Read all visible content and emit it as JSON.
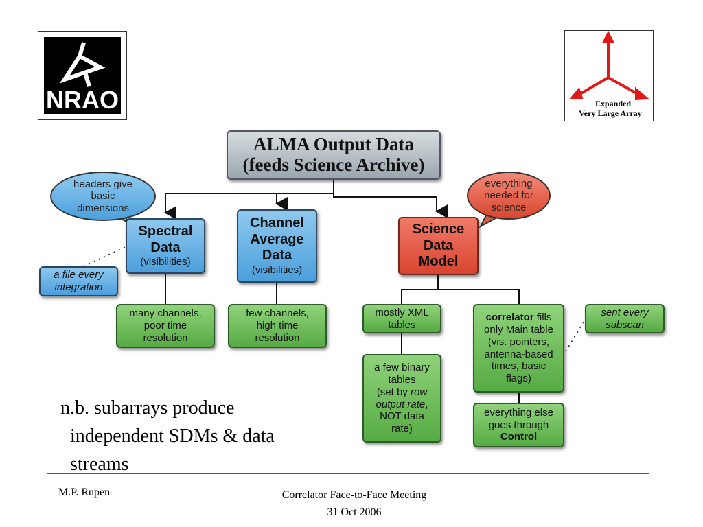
{
  "logos": {
    "left": "NRAO",
    "right": "Expanded Very Large Array"
  },
  "title": {
    "line1": "ALMA Output Data",
    "line2": "(feeds Science Archive)"
  },
  "bubbles": {
    "headers": [
      "headers give",
      "basic",
      "dimensions"
    ],
    "science": [
      "everything",
      "needed for",
      "science"
    ]
  },
  "nodes": {
    "spectral": {
      "title1": "Spectral",
      "title2": "Data",
      "sub": "(visibilities)"
    },
    "channel": {
      "title1": "Channel",
      "title2": "Average",
      "title3": "Data",
      "sub": "(visibilities)"
    },
    "sdm": {
      "title1": "Science",
      "title2": "Data",
      "title3": "Model"
    },
    "file_every": [
      "a file every",
      "integration"
    ],
    "many_channels": [
      "many channels,",
      "poor time",
      "resolution"
    ],
    "few_channels": [
      "few channels,",
      "high time",
      "resolution"
    ],
    "xml": [
      "mostly XML",
      "tables"
    ],
    "binary": {
      "l1": "a few binary",
      "l2": "tables",
      "l3a": "(set by ",
      "l3b": "row",
      "l4a": "output rate",
      "l4b": ",",
      "l5": "NOT data",
      "l6": "rate)"
    },
    "correlator": {
      "bold": "correlator",
      "l1rest": " fills",
      "l2": "only Main table",
      "l3": "(vis. pointers,",
      "l4": "antenna-based",
      "l5": "times, basic",
      "l6": "flags)"
    },
    "everything_else": {
      "l1": "everything else",
      "l2": "goes through",
      "l3": "Control"
    },
    "subscan": [
      "sent every",
      "subscan"
    ]
  },
  "note": [
    "n.b. subarrays produce",
    "independent SDMs & data",
    "streams"
  ],
  "footer": {
    "author": "M.P. Rupen",
    "meeting": "Correlator Face-to-Face Meeting",
    "date": "31 Oct 2006"
  },
  "colors": {
    "accent_line": "#e02020",
    "blue": "#4b9fdc",
    "green": "#56ab44",
    "red": "#d8452f"
  }
}
